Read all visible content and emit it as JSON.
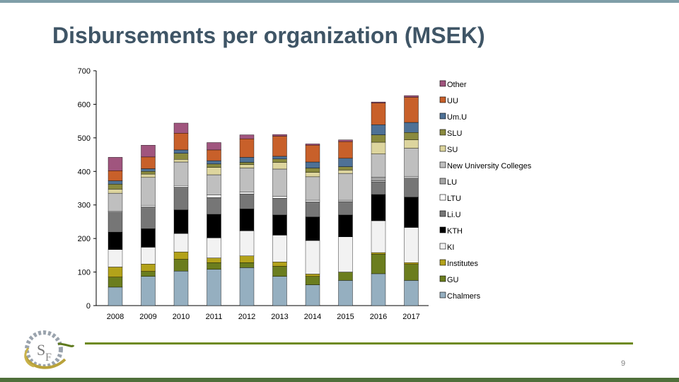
{
  "slide": {
    "title": "Disbursements per organization (MSEK)",
    "page_number": "9"
  },
  "chart_data": {
    "type": "bar",
    "stacked": true,
    "categories": [
      "2008",
      "2009",
      "2010",
      "2011",
      "2012",
      "2013",
      "2014",
      "2015",
      "2016",
      "2017"
    ],
    "ylim": [
      0,
      700
    ],
    "yticks": [
      0,
      100,
      200,
      300,
      400,
      500,
      600,
      700
    ],
    "grid": false,
    "legend_position": "right",
    "series": [
      {
        "name": "Chalmers",
        "color": "#95afc0",
        "values": [
          55,
          87,
          103,
          108,
          113,
          87,
          62,
          75,
          95,
          75
        ]
      },
      {
        "name": "GU",
        "color": "#6b7d1e",
        "values": [
          30,
          15,
          35,
          20,
          15,
          30,
          25,
          25,
          58,
          48
        ]
      },
      {
        "name": "Institutes",
        "color": "#b3a21a",
        "values": [
          30,
          22,
          22,
          14,
          20,
          13,
          7,
          0,
          5,
          5
        ]
      },
      {
        "name": "KI",
        "color": "#f2f2f2",
        "values": [
          52,
          50,
          55,
          60,
          75,
          80,
          100,
          105,
          95,
          105
        ]
      },
      {
        "name": "KTH",
        "color": "#000000",
        "values": [
          52,
          55,
          70,
          70,
          65,
          60,
          70,
          65,
          78,
          90
        ]
      },
      {
        "name": "Li.U",
        "color": "#767676",
        "values": [
          60,
          65,
          68,
          50,
          45,
          50,
          45,
          40,
          38,
          57
        ]
      },
      {
        "name": "LTU",
        "color": "#ffffff",
        "values": [
          3,
          5,
          5,
          8,
          5,
          5,
          5,
          4,
          3,
          4
        ]
      },
      {
        "name": "LU",
        "color": "#a5a5a5",
        "values": [
          0,
          0,
          0,
          0,
          0,
          0,
          0,
          0,
          10,
          0
        ]
      },
      {
        "name": "New University Colleges",
        "color": "#bfbfbf",
        "values": [
          53,
          83,
          70,
          60,
          72,
          82,
          70,
          80,
          70,
          85
        ]
      },
      {
        "name": "SU",
        "color": "#ddd59e",
        "values": [
          12,
          10,
          8,
          22,
          10,
          20,
          13,
          10,
          35,
          25
        ]
      },
      {
        "name": "SLU",
        "color": "#8a8a3e",
        "values": [
          15,
          8,
          18,
          10,
          7,
          10,
          13,
          10,
          22,
          22
        ]
      },
      {
        "name": "Um.U",
        "color": "#4e7196",
        "values": [
          10,
          8,
          10,
          10,
          15,
          8,
          18,
          25,
          30,
          30
        ]
      },
      {
        "name": "UU",
        "color": "#c8602a",
        "values": [
          30,
          35,
          50,
          32,
          55,
          60,
          50,
          50,
          65,
          75
        ]
      },
      {
        "name": "Other",
        "color": "#a0557e",
        "values": [
          40,
          35,
          30,
          22,
          12,
          5,
          4,
          5,
          3,
          5
        ]
      }
    ]
  }
}
